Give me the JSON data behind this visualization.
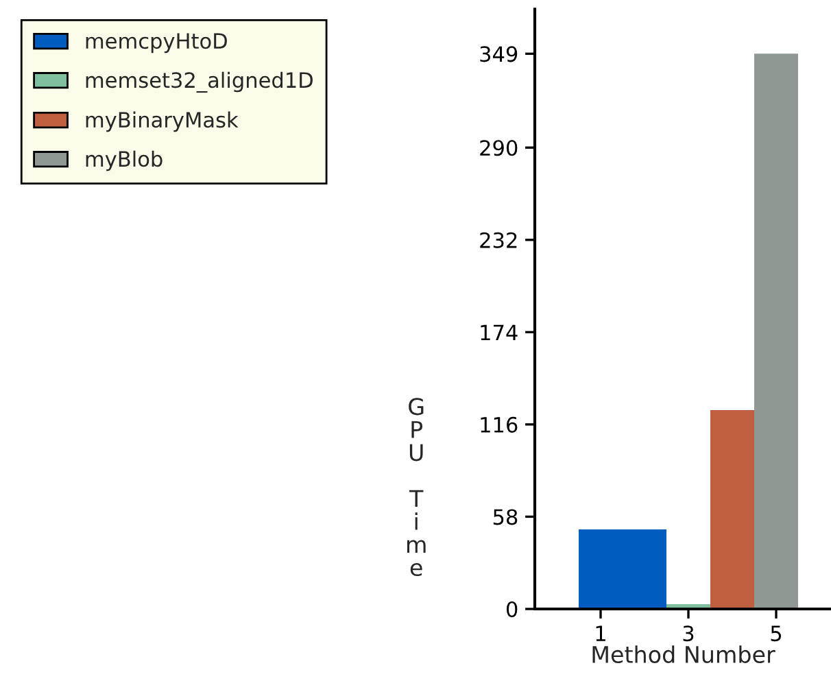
{
  "chart_data": {
    "type": "bar",
    "xlabel": "Method Number",
    "ylabel": "GPU Time",
    "series": [
      {
        "name": "memcpyHtoD",
        "color": "#005dbf",
        "x": [
          1,
          2
        ],
        "values": [
          50,
          50
        ]
      },
      {
        "name": "memset32_aligned1D",
        "color": "#7fbf9f",
        "x": [
          3
        ],
        "values": [
          3
        ]
      },
      {
        "name": "myBinaryMask",
        "color": "#bf5f3f",
        "x": [
          4
        ],
        "values": [
          125
        ]
      },
      {
        "name": "myBlob",
        "color": "#8f9893",
        "x": [
          5
        ],
        "values": [
          349
        ]
      }
    ],
    "xlim": [
      -0.5,
      6.25
    ],
    "xticks": [
      1,
      3,
      5
    ],
    "ylim": [
      0,
      377
    ],
    "yticks": [
      0,
      58,
      116,
      174,
      232,
      290,
      349
    ],
    "legend": "top left",
    "grid": false
  }
}
